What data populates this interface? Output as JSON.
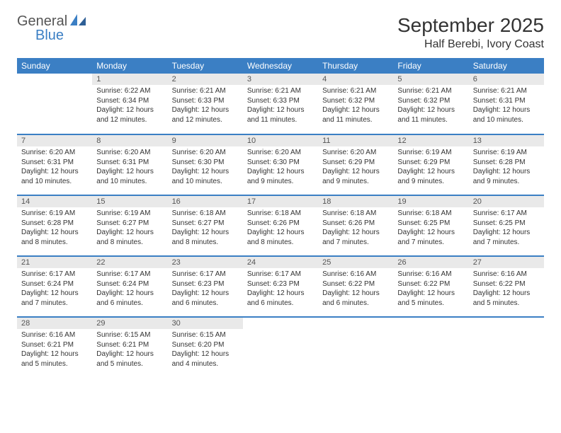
{
  "logo": {
    "text1": "General",
    "text2": "Blue"
  },
  "title": "September 2025",
  "location": "Half Berebi, Ivory Coast",
  "header_bg": "#3b7fc4",
  "header_fg": "#ffffff",
  "daynum_bg": "#e9e9e9",
  "row_border": "#3b7fc4",
  "days": [
    "Sunday",
    "Monday",
    "Tuesday",
    "Wednesday",
    "Thursday",
    "Friday",
    "Saturday"
  ],
  "weeks": [
    [
      null,
      {
        "n": "1",
        "sr": "Sunrise: 6:22 AM",
        "ss": "Sunset: 6:34 PM",
        "d1": "Daylight: 12 hours",
        "d2": "and 12 minutes."
      },
      {
        "n": "2",
        "sr": "Sunrise: 6:21 AM",
        "ss": "Sunset: 6:33 PM",
        "d1": "Daylight: 12 hours",
        "d2": "and 12 minutes."
      },
      {
        "n": "3",
        "sr": "Sunrise: 6:21 AM",
        "ss": "Sunset: 6:33 PM",
        "d1": "Daylight: 12 hours",
        "d2": "and 11 minutes."
      },
      {
        "n": "4",
        "sr": "Sunrise: 6:21 AM",
        "ss": "Sunset: 6:32 PM",
        "d1": "Daylight: 12 hours",
        "d2": "and 11 minutes."
      },
      {
        "n": "5",
        "sr": "Sunrise: 6:21 AM",
        "ss": "Sunset: 6:32 PM",
        "d1": "Daylight: 12 hours",
        "d2": "and 11 minutes."
      },
      {
        "n": "6",
        "sr": "Sunrise: 6:21 AM",
        "ss": "Sunset: 6:31 PM",
        "d1": "Daylight: 12 hours",
        "d2": "and 10 minutes."
      }
    ],
    [
      {
        "n": "7",
        "sr": "Sunrise: 6:20 AM",
        "ss": "Sunset: 6:31 PM",
        "d1": "Daylight: 12 hours",
        "d2": "and 10 minutes."
      },
      {
        "n": "8",
        "sr": "Sunrise: 6:20 AM",
        "ss": "Sunset: 6:31 PM",
        "d1": "Daylight: 12 hours",
        "d2": "and 10 minutes."
      },
      {
        "n": "9",
        "sr": "Sunrise: 6:20 AM",
        "ss": "Sunset: 6:30 PM",
        "d1": "Daylight: 12 hours",
        "d2": "and 10 minutes."
      },
      {
        "n": "10",
        "sr": "Sunrise: 6:20 AM",
        "ss": "Sunset: 6:30 PM",
        "d1": "Daylight: 12 hours",
        "d2": "and 9 minutes."
      },
      {
        "n": "11",
        "sr": "Sunrise: 6:20 AM",
        "ss": "Sunset: 6:29 PM",
        "d1": "Daylight: 12 hours",
        "d2": "and 9 minutes."
      },
      {
        "n": "12",
        "sr": "Sunrise: 6:19 AM",
        "ss": "Sunset: 6:29 PM",
        "d1": "Daylight: 12 hours",
        "d2": "and 9 minutes."
      },
      {
        "n": "13",
        "sr": "Sunrise: 6:19 AM",
        "ss": "Sunset: 6:28 PM",
        "d1": "Daylight: 12 hours",
        "d2": "and 9 minutes."
      }
    ],
    [
      {
        "n": "14",
        "sr": "Sunrise: 6:19 AM",
        "ss": "Sunset: 6:28 PM",
        "d1": "Daylight: 12 hours",
        "d2": "and 8 minutes."
      },
      {
        "n": "15",
        "sr": "Sunrise: 6:19 AM",
        "ss": "Sunset: 6:27 PM",
        "d1": "Daylight: 12 hours",
        "d2": "and 8 minutes."
      },
      {
        "n": "16",
        "sr": "Sunrise: 6:18 AM",
        "ss": "Sunset: 6:27 PM",
        "d1": "Daylight: 12 hours",
        "d2": "and 8 minutes."
      },
      {
        "n": "17",
        "sr": "Sunrise: 6:18 AM",
        "ss": "Sunset: 6:26 PM",
        "d1": "Daylight: 12 hours",
        "d2": "and 8 minutes."
      },
      {
        "n": "18",
        "sr": "Sunrise: 6:18 AM",
        "ss": "Sunset: 6:26 PM",
        "d1": "Daylight: 12 hours",
        "d2": "and 7 minutes."
      },
      {
        "n": "19",
        "sr": "Sunrise: 6:18 AM",
        "ss": "Sunset: 6:25 PM",
        "d1": "Daylight: 12 hours",
        "d2": "and 7 minutes."
      },
      {
        "n": "20",
        "sr": "Sunrise: 6:17 AM",
        "ss": "Sunset: 6:25 PM",
        "d1": "Daylight: 12 hours",
        "d2": "and 7 minutes."
      }
    ],
    [
      {
        "n": "21",
        "sr": "Sunrise: 6:17 AM",
        "ss": "Sunset: 6:24 PM",
        "d1": "Daylight: 12 hours",
        "d2": "and 7 minutes."
      },
      {
        "n": "22",
        "sr": "Sunrise: 6:17 AM",
        "ss": "Sunset: 6:24 PM",
        "d1": "Daylight: 12 hours",
        "d2": "and 6 minutes."
      },
      {
        "n": "23",
        "sr": "Sunrise: 6:17 AM",
        "ss": "Sunset: 6:23 PM",
        "d1": "Daylight: 12 hours",
        "d2": "and 6 minutes."
      },
      {
        "n": "24",
        "sr": "Sunrise: 6:17 AM",
        "ss": "Sunset: 6:23 PM",
        "d1": "Daylight: 12 hours",
        "d2": "and 6 minutes."
      },
      {
        "n": "25",
        "sr": "Sunrise: 6:16 AM",
        "ss": "Sunset: 6:22 PM",
        "d1": "Daylight: 12 hours",
        "d2": "and 6 minutes."
      },
      {
        "n": "26",
        "sr": "Sunrise: 6:16 AM",
        "ss": "Sunset: 6:22 PM",
        "d1": "Daylight: 12 hours",
        "d2": "and 5 minutes."
      },
      {
        "n": "27",
        "sr": "Sunrise: 6:16 AM",
        "ss": "Sunset: 6:22 PM",
        "d1": "Daylight: 12 hours",
        "d2": "and 5 minutes."
      }
    ],
    [
      {
        "n": "28",
        "sr": "Sunrise: 6:16 AM",
        "ss": "Sunset: 6:21 PM",
        "d1": "Daylight: 12 hours",
        "d2": "and 5 minutes."
      },
      {
        "n": "29",
        "sr": "Sunrise: 6:15 AM",
        "ss": "Sunset: 6:21 PM",
        "d1": "Daylight: 12 hours",
        "d2": "and 5 minutes."
      },
      {
        "n": "30",
        "sr": "Sunrise: 6:15 AM",
        "ss": "Sunset: 6:20 PM",
        "d1": "Daylight: 12 hours",
        "d2": "and 4 minutes."
      },
      null,
      null,
      null,
      null
    ]
  ]
}
